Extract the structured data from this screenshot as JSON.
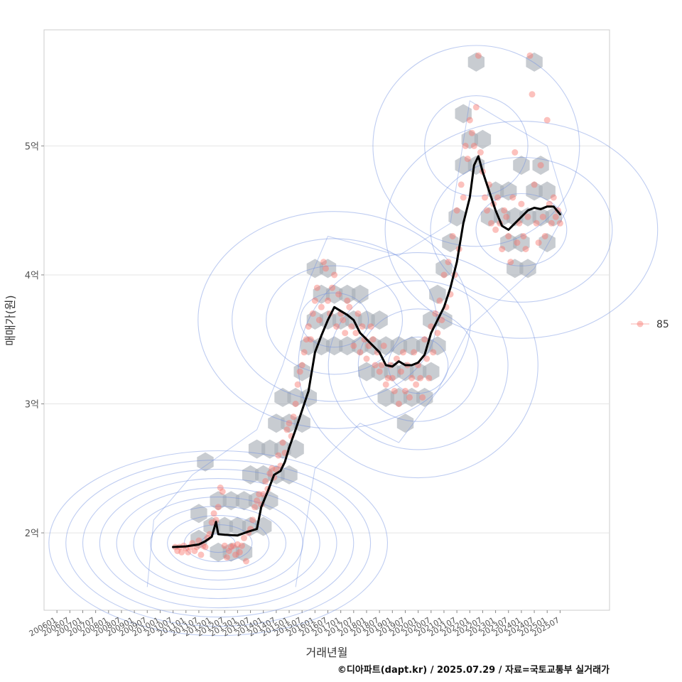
{
  "chart_data": {
    "type": "scatter",
    "xlabel": "거래년월",
    "ylabel": "매매가(원)",
    "caption": "©디아파트(dapt.kr) / 2025.07.29 / 자료=국토교통부 실거래가",
    "x_ticks": [
      "200601",
      "200607",
      "200701",
      "200707",
      "200801",
      "200807",
      "200901",
      "200907",
      "201001",
      "201007",
      "201101",
      "201107",
      "201201",
      "201207",
      "201301",
      "201307",
      "201401",
      "201407",
      "201501",
      "201507",
      "201601",
      "201607",
      "201701",
      "201707",
      "201801",
      "201807",
      "201901",
      "201907",
      "202001",
      "202007",
      "202101",
      "202107",
      "202201",
      "202207",
      "202301",
      "202307",
      "202401",
      "202407",
      "202501",
      "202507"
    ],
    "y_ticks": [
      {
        "value": 20000,
        "label": "2억"
      },
      {
        "value": 30000,
        "label": "3억"
      },
      {
        "value": 40000,
        "label": "4억"
      },
      {
        "value": 50000,
        "label": "5억"
      }
    ],
    "xlim": [
      "2005-07",
      "2027-06"
    ],
    "ylim_manwon": [
      14000,
      59000
    ],
    "grid": true,
    "legend": {
      "position": "right",
      "entries": [
        {
          "name": "85",
          "color": "#F8766D"
        }
      ]
    },
    "layers": [
      "hexbin",
      "density_contour",
      "transaction_points",
      "moving_average_line"
    ],
    "colors": {
      "points": "#F8766D",
      "line": "#000000",
      "hex": "#A6ADB5",
      "contour": "#6F8FE0"
    },
    "series": [
      {
        "name": "moving_average",
        "points": [
          [
            "2010-07",
            18900
          ],
          [
            "2011-01",
            18950
          ],
          [
            "2011-07",
            19100
          ],
          [
            "2011-10",
            19350
          ],
          [
            "2012-01",
            19700
          ],
          [
            "2012-03",
            20850
          ],
          [
            "2012-04",
            19900
          ],
          [
            "2012-07",
            19850
          ],
          [
            "2013-01",
            19800
          ],
          [
            "2013-06",
            20100
          ],
          [
            "2013-10",
            20300
          ],
          [
            "2013-12",
            22000
          ],
          [
            "2014-03",
            23200
          ],
          [
            "2014-06",
            24500
          ],
          [
            "2014-09",
            24800
          ],
          [
            "2014-11",
            25500
          ],
          [
            "2015-01",
            26600
          ],
          [
            "2015-04",
            28000
          ],
          [
            "2015-07",
            29500
          ],
          [
            "2015-10",
            31000
          ],
          [
            "2016-01",
            34000
          ],
          [
            "2016-04",
            35300
          ],
          [
            "2016-07",
            36500
          ],
          [
            "2016-10",
            37500
          ],
          [
            "2017-01",
            37200
          ],
          [
            "2017-04",
            36900
          ],
          [
            "2017-07",
            36500
          ],
          [
            "2017-10",
            35500
          ],
          [
            "2018-01",
            35000
          ],
          [
            "2018-04",
            34500
          ],
          [
            "2018-07",
            34000
          ],
          [
            "2018-10",
            33000
          ],
          [
            "2019-01",
            32900
          ],
          [
            "2019-04",
            33300
          ],
          [
            "2019-07",
            33000
          ],
          [
            "2019-10",
            33000
          ],
          [
            "2020-01",
            33200
          ],
          [
            "2020-04",
            33800
          ],
          [
            "2020-07",
            35500
          ],
          [
            "2020-10",
            36500
          ],
          [
            "2021-01",
            37500
          ],
          [
            "2021-04",
            39000
          ],
          [
            "2021-07",
            41000
          ],
          [
            "2021-10",
            44000
          ],
          [
            "2022-01",
            46000
          ],
          [
            "2022-03",
            48500
          ],
          [
            "2022-05",
            49200
          ],
          [
            "2022-07",
            48000
          ],
          [
            "2022-10",
            46500
          ],
          [
            "2023-01",
            45000
          ],
          [
            "2023-04",
            43800
          ],
          [
            "2023-07",
            43500
          ],
          [
            "2023-10",
            44000
          ],
          [
            "2024-01",
            44500
          ],
          [
            "2024-04",
            45000
          ],
          [
            "2024-07",
            45200
          ],
          [
            "2024-10",
            45100
          ],
          [
            "2025-01",
            45300
          ],
          [
            "2025-04",
            45300
          ],
          [
            "2025-07",
            44700
          ]
        ]
      }
    ],
    "points": [
      [
        "2010-08",
        18900
      ],
      [
        "2010-09",
        18600
      ],
      [
        "2010-10",
        18900
      ],
      [
        "2010-11",
        18500
      ],
      [
        "2010-12",
        19000
      ],
      [
        "2011-01",
        18800
      ],
      [
        "2011-02",
        18500
      ],
      [
        "2011-03",
        18900
      ],
      [
        "2011-04",
        19200
      ],
      [
        "2011-05",
        18600
      ],
      [
        "2011-06",
        18900
      ],
      [
        "2011-07",
        19400
      ],
      [
        "2011-08",
        18300
      ],
      [
        "2011-09",
        19000
      ],
      [
        "2011-10",
        18900
      ],
      [
        "2011-11",
        19600
      ],
      [
        "2011-12",
        19900
      ],
      [
        "2012-01",
        20800
      ],
      [
        "2012-02",
        21500
      ],
      [
        "2012-03",
        21000
      ],
      [
        "2012-04",
        22000
      ],
      [
        "2012-05",
        23500
      ],
      [
        "2012-06",
        23200
      ],
      [
        "2012-07",
        19000
      ],
      [
        "2012-08",
        18100
      ],
      [
        "2012-09",
        18600
      ],
      [
        "2012-10",
        18900
      ],
      [
        "2012-11",
        19000
      ],
      [
        "2012-12",
        18300
      ],
      [
        "2013-01",
        19100
      ],
      [
        "2013-02",
        18500
      ],
      [
        "2013-03",
        19000
      ],
      [
        "2013-04",
        19600
      ],
      [
        "2013-05",
        17800
      ],
      [
        "2013-06",
        20000
      ],
      [
        "2013-07",
        20300
      ],
      [
        "2013-08",
        21000
      ],
      [
        "2013-09",
        22000
      ],
      [
        "2013-10",
        22500
      ],
      [
        "2013-11",
        23000
      ],
      [
        "2013-12",
        22200
      ],
      [
        "2014-01",
        23000
      ],
      [
        "2014-02",
        24000
      ],
      [
        "2014-03",
        23400
      ],
      [
        "2014-04",
        24600
      ],
      [
        "2014-05",
        25000
      ],
      [
        "2014-06",
        24300
      ],
      [
        "2014-07",
        24900
      ],
      [
        "2014-08",
        26000
      ],
      [
        "2014-09",
        25200
      ],
      [
        "2014-10",
        27000
      ],
      [
        "2014-11",
        26200
      ],
      [
        "2014-12",
        28000
      ],
      [
        "2015-01",
        28500
      ],
      [
        "2015-02",
        27500
      ],
      [
        "2015-03",
        29000
      ],
      [
        "2015-04",
        30000
      ],
      [
        "2015-05",
        31500
      ],
      [
        "2015-06",
        32500
      ],
      [
        "2015-07",
        33000
      ],
      [
        "2015-08",
        34000
      ],
      [
        "2015-09",
        35000
      ],
      [
        "2015-10",
        36000
      ],
      [
        "2015-11",
        35000
      ],
      [
        "2015-12",
        37000
      ],
      [
        "2016-01",
        38000
      ],
      [
        "2016-02",
        39000
      ],
      [
        "2016-03",
        36500
      ],
      [
        "2016-04",
        37500
      ],
      [
        "2016-05",
        41000
      ],
      [
        "2016-06",
        40500
      ],
      [
        "2016-07",
        38000
      ],
      [
        "2016-08",
        37000
      ],
      [
        "2016-09",
        39000
      ],
      [
        "2016-10",
        40000
      ],
      [
        "2016-11",
        36000
      ],
      [
        "2016-12",
        38500
      ],
      [
        "2017-01",
        37000
      ],
      [
        "2017-02",
        36500
      ],
      [
        "2017-03",
        35500
      ],
      [
        "2017-04",
        38000
      ],
      [
        "2017-05",
        37500
      ],
      [
        "2017-06",
        36000
      ],
      [
        "2017-07",
        34500
      ],
      [
        "2017-08",
        35500
      ],
      [
        "2017-09",
        37000
      ],
      [
        "2017-10",
        34000
      ],
      [
        "2017-11",
        36000
      ],
      [
        "2017-12",
        35000
      ],
      [
        "2018-01",
        33500
      ],
      [
        "2018-02",
        34500
      ],
      [
        "2018-03",
        36000
      ],
      [
        "2018-04",
        35000
      ],
      [
        "2018-05",
        33000
      ],
      [
        "2018-06",
        34000
      ],
      [
        "2018-07",
        32500
      ],
      [
        "2018-08",
        33000
      ],
      [
        "2018-09",
        34500
      ],
      [
        "2018-10",
        31500
      ],
      [
        "2018-11",
        32000
      ],
      [
        "2018-12",
        33000
      ],
      [
        "2019-01",
        32000
      ],
      [
        "2019-02",
        31000
      ],
      [
        "2019-03",
        33500
      ],
      [
        "2019-04",
        30000
      ],
      [
        "2019-05",
        32500
      ],
      [
        "2019-06",
        34000
      ],
      [
        "2019-07",
        31000
      ],
      [
        "2019-08",
        33000
      ],
      [
        "2019-09",
        30500
      ],
      [
        "2019-10",
        32000
      ],
      [
        "2019-11",
        34000
      ],
      [
        "2019-12",
        31500
      ],
      [
        "2020-01",
        33000
      ],
      [
        "2020-02",
        32000
      ],
      [
        "2020-03",
        30500
      ],
      [
        "2020-04",
        35000
      ],
      [
        "2020-05",
        33500
      ],
      [
        "2020-06",
        32000
      ],
      [
        "2020-07",
        36000
      ],
      [
        "2020-08",
        34000
      ],
      [
        "2020-09",
        37000
      ],
      [
        "2020-10",
        35500
      ],
      [
        "2020-11",
        38000
      ],
      [
        "2020-12",
        36500
      ],
      [
        "2021-01",
        40000
      ],
      [
        "2021-02",
        37500
      ],
      [
        "2021-03",
        41000
      ],
      [
        "2021-04",
        38500
      ],
      [
        "2021-05",
        43000
      ],
      [
        "2021-06",
        40000
      ],
      [
        "2021-07",
        45000
      ],
      [
        "2021-08",
        42000
      ],
      [
        "2021-09",
        47000
      ],
      [
        "2021-10",
        46000
      ],
      [
        "2021-11",
        50000
      ],
      [
        "2021-12",
        49000
      ],
      [
        "2022-01",
        52000
      ],
      [
        "2022-02",
        51000
      ],
      [
        "2022-03",
        50000
      ],
      [
        "2022-04",
        53000
      ],
      [
        "2022-05",
        57000
      ],
      [
        "2022-06",
        49500
      ],
      [
        "2022-07",
        48000
      ],
      [
        "2022-08",
        46000
      ],
      [
        "2022-09",
        45000
      ],
      [
        "2022-10",
        47000
      ],
      [
        "2022-11",
        44000
      ],
      [
        "2022-12",
        45500
      ],
      [
        "2023-01",
        43500
      ],
      [
        "2023-02",
        46000
      ],
      [
        "2023-03",
        44000
      ],
      [
        "2023-04",
        42000
      ],
      [
        "2023-05",
        45000
      ],
      [
        "2023-06",
        44500
      ],
      [
        "2023-07",
        43000
      ],
      [
        "2023-08",
        41000
      ],
      [
        "2023-09",
        46000
      ],
      [
        "2023-10",
        49500
      ],
      [
        "2023-11",
        42500
      ],
      [
        "2023-12",
        44000
      ],
      [
        "2024-01",
        45500
      ],
      [
        "2024-02",
        43000
      ],
      [
        "2024-03",
        42000
      ],
      [
        "2024-04",
        44500
      ],
      [
        "2024-05",
        57000
      ],
      [
        "2024-06",
        54000
      ],
      [
        "2024-07",
        47000
      ],
      [
        "2024-08",
        44000
      ],
      [
        "2024-09",
        42500
      ],
      [
        "2024-10",
        48500
      ],
      [
        "2024-11",
        44500
      ],
      [
        "2024-12",
        43000
      ],
      [
        "2025-01",
        52000
      ],
      [
        "2025-02",
        45500
      ],
      [
        "2025-03",
        44000
      ],
      [
        "2025-04",
        46000
      ],
      [
        "2025-05",
        44500
      ],
      [
        "2025-06",
        45000
      ],
      [
        "2025-07",
        44000
      ]
    ],
    "hexbins": [
      [
        "2011-07",
        19500
      ],
      [
        "2011-07",
        21500
      ],
      [
        "2011-10",
        25500
      ],
      [
        "2012-01",
        20500
      ],
      [
        "2012-04",
        22500
      ],
      [
        "2012-04",
        18500
      ],
      [
        "2012-07",
        20500
      ],
      [
        "2012-10",
        22500
      ],
      [
        "2012-10",
        18500
      ],
      [
        "2013-01",
        20500
      ],
      [
        "2013-04",
        22500
      ],
      [
        "2013-04",
        18500
      ],
      [
        "2013-07",
        20500
      ],
      [
        "2013-07",
        24500
      ],
      [
        "2013-10",
        22500
      ],
      [
        "2013-10",
        26500
      ],
      [
        "2014-01",
        24500
      ],
      [
        "2014-01",
        20500
      ],
      [
        "2014-04",
        22500
      ],
      [
        "2014-04",
        26500
      ],
      [
        "2014-07",
        24500
      ],
      [
        "2014-07",
        28500
      ],
      [
        "2014-10",
        26500
      ],
      [
        "2014-10",
        30500
      ],
      [
        "2015-01",
        28500
      ],
      [
        "2015-01",
        24500
      ],
      [
        "2015-04",
        26500
      ],
      [
        "2015-04",
        30500
      ],
      [
        "2015-07",
        28500
      ],
      [
        "2015-07",
        32500
      ],
      [
        "2015-10",
        34500
      ],
      [
        "2015-10",
        30500
      ],
      [
        "2016-01",
        36500
      ],
      [
        "2016-01",
        40500
      ],
      [
        "2016-04",
        38500
      ],
      [
        "2016-04",
        34500
      ],
      [
        "2016-07",
        36500
      ],
      [
        "2016-07",
        40500
      ],
      [
        "2016-10",
        38500
      ],
      [
        "2016-10",
        34500
      ],
      [
        "2017-01",
        36500
      ],
      [
        "2017-04",
        38500
      ],
      [
        "2017-04",
        34500
      ],
      [
        "2017-07",
        36500
      ],
      [
        "2017-10",
        34500
      ],
      [
        "2017-10",
        38500
      ],
      [
        "2018-01",
        32500
      ],
      [
        "2018-01",
        36500
      ],
      [
        "2018-04",
        34500
      ],
      [
        "2018-07",
        32500
      ],
      [
        "2018-07",
        36500
      ],
      [
        "2018-10",
        30500
      ],
      [
        "2018-10",
        34500
      ],
      [
        "2019-01",
        32500
      ],
      [
        "2019-04",
        30500
      ],
      [
        "2019-04",
        34500
      ],
      [
        "2019-07",
        32500
      ],
      [
        "2019-07",
        28500
      ],
      [
        "2019-10",
        30500
      ],
      [
        "2019-10",
        34500
      ],
      [
        "2020-01",
        32500
      ],
      [
        "2020-04",
        30500
      ],
      [
        "2020-04",
        34500
      ],
      [
        "2020-07",
        32500
      ],
      [
        "2020-07",
        36500
      ],
      [
        "2020-10",
        34500
      ],
      [
        "2020-10",
        38500
      ],
      [
        "2021-01",
        40500
      ],
      [
        "2021-01",
        36500
      ],
      [
        "2021-04",
        42500
      ],
      [
        "2021-07",
        44500
      ],
      [
        "2021-10",
        48500
      ],
      [
        "2021-10",
        52500
      ],
      [
        "2022-01",
        50500
      ],
      [
        "2022-04",
        48500
      ],
      [
        "2022-04",
        56500
      ],
      [
        "2022-07",
        50500
      ],
      [
        "2022-10",
        44500
      ],
      [
        "2023-01",
        46500
      ],
      [
        "2023-04",
        44500
      ],
      [
        "2023-07",
        42500
      ],
      [
        "2023-07",
        46500
      ],
      [
        "2023-10",
        40500
      ],
      [
        "2023-10",
        44500
      ],
      [
        "2024-01",
        42500
      ],
      [
        "2024-01",
        48500
      ],
      [
        "2024-04",
        44500
      ],
      [
        "2024-04",
        40500
      ],
      [
        "2024-07",
        46500
      ],
      [
        "2024-07",
        56500
      ],
      [
        "2024-10",
        44500
      ],
      [
        "2024-10",
        48500
      ],
      [
        "2025-01",
        46500
      ],
      [
        "2025-01",
        42500
      ],
      [
        "2025-04",
        44500
      ]
    ]
  }
}
